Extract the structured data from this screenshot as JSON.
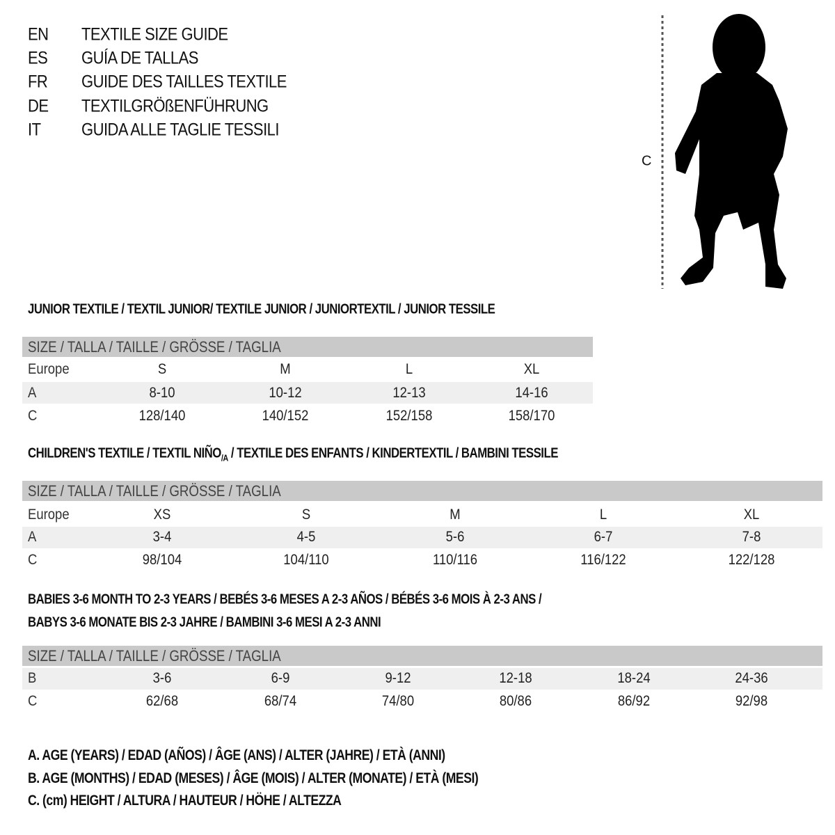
{
  "header": [
    {
      "code": "EN",
      "title": "TEXTILE SIZE GUIDE"
    },
    {
      "code": "ES",
      "title": "GUÍA DE TALLAS"
    },
    {
      "code": "FR",
      "title": "GUIDE DES TAILLES TEXTILE"
    },
    {
      "code": "DE",
      "title": "TEXTILGRÖßENFÜHRUNG"
    },
    {
      "code": "IT",
      "title": "GUIDA ALLE TAGLIE TESSILI"
    }
  ],
  "figure": {
    "measure_label": "C",
    "icon": "child-silhouette"
  },
  "size_header": "SIZE / TALLA / TAILLE / GRÖSSE / TAGLIA",
  "junior": {
    "title": "JUNIOR TEXTILE / TEXTIL JUNIOR/ TEXTILE JUNIOR / JUNIORTEXTIL / JUNIOR TESSILE",
    "rows": [
      {
        "label": "Europe",
        "values": [
          "S",
          "M",
          "L",
          "XL"
        ]
      },
      {
        "label": "A",
        "values": [
          "8-10",
          "10-12",
          "12-13",
          "14-16"
        ]
      },
      {
        "label": "C",
        "values": [
          "128/140",
          "140/152",
          "152/158",
          "158/170"
        ]
      }
    ]
  },
  "children": {
    "title_pre": "CHILDREN'S TEXTILE / TEXTIL NIÑO",
    "title_sub": "/A",
    "title_post": " / TEXTILE DES ENFANTS / KINDERTEXTIL / BAMBINI TESSILE",
    "rows": [
      {
        "label": "Europe",
        "values": [
          "XS",
          "S",
          "M",
          "L",
          "XL"
        ]
      },
      {
        "label": "A",
        "values": [
          "3-4",
          "4-5",
          "5-6",
          "6-7",
          "7-8"
        ]
      },
      {
        "label": "C",
        "values": [
          "98/104",
          "104/110",
          "110/116",
          "116/122",
          "122/128"
        ]
      }
    ]
  },
  "babies": {
    "title_line1": "BABIES 3-6 MONTH TO 2-3 YEARS / BEBÉS 3-6 MESES A 2-3 AÑOS / BÉBÉS 3-6 MOIS À 2-3 ANS /",
    "title_line2": "BABYS 3-6 MONATE BIS 2-3 JAHRE / BAMBINI 3-6 MESI A 2-3 ANNI",
    "rows": [
      {
        "label": "B",
        "values": [
          "3-6",
          "6-9",
          "9-12",
          "12-18",
          "18-24",
          "24-36"
        ]
      },
      {
        "label": "C",
        "values": [
          "62/68",
          "68/74",
          "74/80",
          "80/86",
          "86/92",
          "92/98"
        ]
      }
    ]
  },
  "legend": [
    "A. AGE (YEARS) / EDAD (AÑOS) / ÂGE (ANS) / ALTER (JAHRE) / ETÀ (ANNI)",
    "B. AGE (MONTHS) / EDAD (MESES) / ÂGE (MOIS) / ALTER (MONATE) / ETÀ (MESI)",
    "C. (cm) HEIGHT / ALTURA / HAUTEUR / HÖHE / ALTEZZA"
  ]
}
